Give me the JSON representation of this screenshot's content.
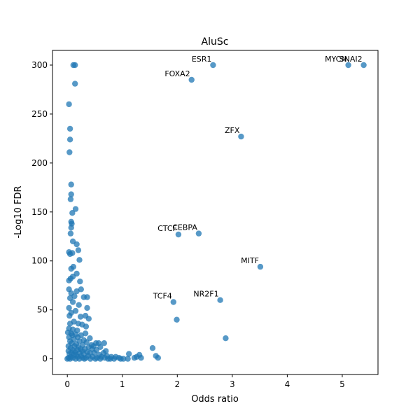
{
  "chart_data": {
    "type": "scatter",
    "title": "AluSc",
    "xlabel": "Odds ratio",
    "ylabel": "-Log10 FDR",
    "xlim": [
      -0.27,
      5.65
    ],
    "ylim": [
      -16,
      315
    ],
    "xticks": [
      0,
      1,
      2,
      3,
      4,
      5
    ],
    "yticks": [
      0,
      50,
      100,
      150,
      200,
      250,
      300
    ],
    "grid": false,
    "marker_color": "#1f77b4",
    "marker_alpha": 0.75,
    "annotations": [
      {
        "text": "ESR1",
        "x": 2.65,
        "y": 300
      },
      {
        "text": "FOXA2",
        "x": 2.26,
        "y": 285
      },
      {
        "text": "MYCN",
        "x": 5.11,
        "y": 300
      },
      {
        "text": "SNAI2",
        "x": 5.39,
        "y": 300
      },
      {
        "text": "ZFX",
        "x": 3.16,
        "y": 227
      },
      {
        "text": "CEBPA",
        "x": 2.39,
        "y": 128
      },
      {
        "text": "CTCF",
        "x": 2.02,
        "y": 127
      },
      {
        "text": "MITF",
        "x": 3.51,
        "y": 94
      },
      {
        "text": "TCF4",
        "x": 1.93,
        "y": 58
      },
      {
        "text": "NR2F1",
        "x": 2.78,
        "y": 60
      }
    ],
    "points": [
      [
        0.11,
        300
      ],
      [
        0.14,
        300
      ],
      [
        2.65,
        300
      ],
      [
        5.11,
        300
      ],
      [
        5.39,
        300
      ],
      [
        2.26,
        285
      ],
      [
        0.14,
        281
      ],
      [
        0.03,
        260
      ],
      [
        0.05,
        235
      ],
      [
        3.16,
        227
      ],
      [
        0.05,
        224
      ],
      [
        0.04,
        211
      ],
      [
        0.07,
        178
      ],
      [
        0.07,
        168
      ],
      [
        0.06,
        163
      ],
      [
        0.15,
        153
      ],
      [
        0.09,
        149
      ],
      [
        0.07,
        140
      ],
      [
        0.08,
        138
      ],
      [
        0.07,
        134
      ],
      [
        2.02,
        127
      ],
      [
        2.39,
        128
      ],
      [
        0.06,
        128
      ],
      [
        0.1,
        120
      ],
      [
        0.17,
        117
      ],
      [
        0.2,
        111
      ],
      [
        0.03,
        109
      ],
      [
        0.09,
        108
      ],
      [
        0.05,
        107
      ],
      [
        0.22,
        101
      ],
      [
        3.51,
        94
      ],
      [
        0.07,
        92
      ],
      [
        0.11,
        94
      ],
      [
        0.17,
        87
      ],
      [
        0.1,
        84
      ],
      [
        0.06,
        82
      ],
      [
        0.03,
        80
      ],
      [
        0.23,
        79
      ],
      [
        0.25,
        71
      ],
      [
        0.03,
        71
      ],
      [
        0.17,
        69
      ],
      [
        0.07,
        67
      ],
      [
        0.13,
        64
      ],
      [
        0.3,
        63
      ],
      [
        0.36,
        63
      ],
      [
        0.05,
        62
      ],
      [
        0.1,
        58
      ],
      [
        0.21,
        55
      ],
      [
        1.93,
        58
      ],
      [
        2.78,
        60
      ],
      [
        0.03,
        52
      ],
      [
        0.36,
        52
      ],
      [
        0.15,
        49
      ],
      [
        0.07,
        47
      ],
      [
        0.04,
        44
      ],
      [
        0.33,
        44
      ],
      [
        0.24,
        43
      ],
      [
        0.39,
        41
      ],
      [
        1.99,
        40
      ],
      [
        0.12,
        38
      ],
      [
        0.05,
        36
      ],
      [
        0.2,
        36
      ],
      [
        0.27,
        35
      ],
      [
        0.34,
        33
      ],
      [
        0.03,
        31
      ],
      [
        0.1,
        30
      ],
      [
        0.18,
        29
      ],
      [
        0.01,
        27
      ],
      [
        0.07,
        26
      ],
      [
        0.15,
        25
      ],
      [
        0.33,
        26
      ],
      [
        0.09,
        24
      ],
      [
        0.25,
        24
      ],
      [
        0.03,
        22
      ],
      [
        0.19,
        22
      ],
      [
        2.88,
        21
      ],
      [
        0.41,
        21
      ],
      [
        0.12,
        20
      ],
      [
        0.3,
        19
      ],
      [
        0.05,
        18
      ],
      [
        0.22,
        18
      ],
      [
        0.35,
        17
      ],
      [
        0.52,
        16
      ],
      [
        0.57,
        16
      ],
      [
        0.67,
        16
      ],
      [
        0.08,
        16
      ],
      [
        0.16,
        15
      ],
      [
        0.44,
        14
      ],
      [
        0.28,
        14
      ],
      [
        0.02,
        13
      ],
      [
        0.13,
        13
      ],
      [
        0.48,
        13
      ],
      [
        0.6,
        12
      ],
      [
        0.2,
        12
      ],
      [
        0.39,
        12
      ],
      [
        1.55,
        11
      ],
      [
        0.06,
        11
      ],
      [
        0.24,
        10
      ],
      [
        0.32,
        10
      ],
      [
        0.45,
        10
      ],
      [
        0.1,
        9
      ],
      [
        0.18,
        9
      ],
      [
        0.53,
        9
      ],
      [
        0.7,
        8
      ],
      [
        0.27,
        8
      ],
      [
        0.02,
        8
      ],
      [
        0.14,
        7
      ],
      [
        0.36,
        7
      ],
      [
        0.41,
        6
      ],
      [
        0.66,
        6
      ],
      [
        0.08,
        6
      ],
      [
        0.22,
        6
      ],
      [
        0.49,
        6
      ],
      [
        0.3,
        5
      ],
      [
        1.12,
        5
      ],
      [
        1.31,
        4
      ],
      [
        0.04,
        5
      ],
      [
        0.16,
        4
      ],
      [
        0.58,
        4
      ],
      [
        0.12,
        4
      ],
      [
        0.38,
        3
      ],
      [
        1.61,
        3
      ],
      [
        0.25,
        3
      ],
      [
        0.72,
        3
      ],
      [
        1.26,
        2
      ],
      [
        0.46,
        2
      ],
      [
        0.06,
        2
      ],
      [
        0.19,
        2
      ],
      [
        0.62,
        2
      ],
      [
        0.8,
        2
      ],
      [
        0.88,
        2
      ],
      [
        1.34,
        1
      ],
      [
        1.65,
        1
      ],
      [
        0.34,
        1
      ],
      [
        0.54,
        1
      ],
      [
        0.02,
        1
      ],
      [
        0.1,
        1
      ],
      [
        0.28,
        1
      ],
      [
        0.68,
        1
      ],
      [
        0.94,
        1
      ],
      [
        1.02,
        0
      ],
      [
        1.22,
        1
      ],
      [
        0.15,
        0
      ],
      [
        0.42,
        0
      ],
      [
        0.74,
        0
      ],
      [
        0.85,
        0
      ],
      [
        0.97,
        0
      ],
      [
        1.1,
        0
      ],
      [
        0.0,
        0
      ],
      [
        0.05,
        0
      ],
      [
        0.22,
        0
      ],
      [
        0.51,
        0
      ],
      [
        0.6,
        0
      ],
      [
        0.31,
        0
      ],
      [
        0.78,
        0
      ]
    ]
  }
}
